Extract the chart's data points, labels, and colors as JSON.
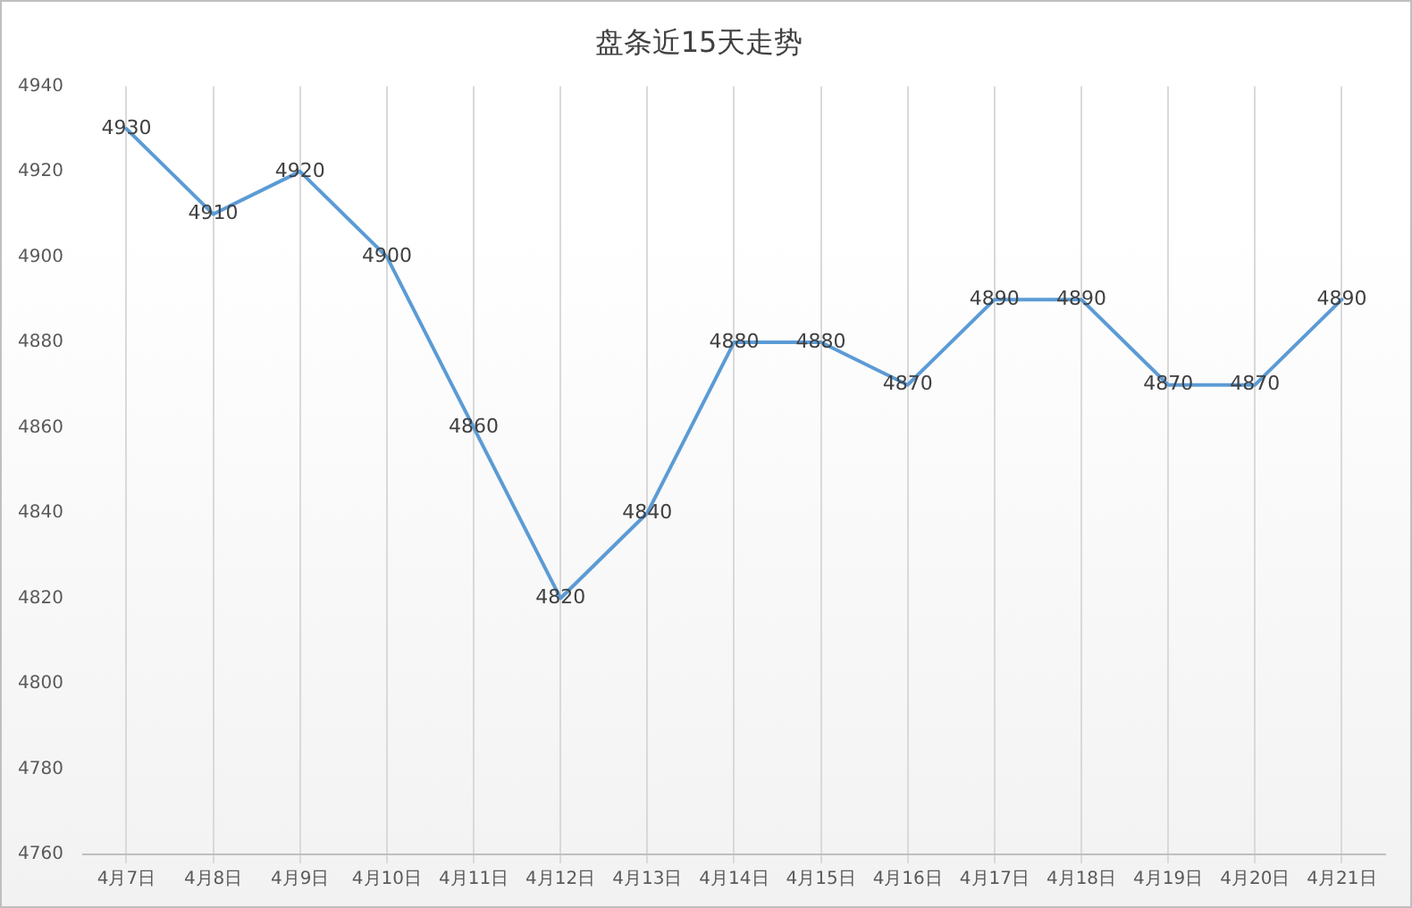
{
  "chart_data": {
    "type": "line",
    "title": "盘条近15天走势",
    "categories": [
      "4月7日",
      "4月8日",
      "4月9日",
      "4月10日",
      "4月11日",
      "4月12日",
      "4月13日",
      "4月14日",
      "4月15日",
      "4月16日",
      "4月17日",
      "4月18日",
      "4月19日",
      "4月20日",
      "4月21日"
    ],
    "series": [
      {
        "color": "#5b9bd5",
        "values": [
          4930,
          4910,
          4920,
          4900,
          4860,
          4820,
          4840,
          4880,
          4880,
          4870,
          4890,
          4890,
          4870,
          4870,
          4890
        ]
      }
    ],
    "ylim": [
      4760,
      4940
    ],
    "yticks": [
      4760,
      4780,
      4800,
      4820,
      4840,
      4860,
      4880,
      4900,
      4920,
      4940
    ],
    "grid": "x",
    "legend": false,
    "marker": "none",
    "line_style": "solid",
    "data_labels": true
  }
}
